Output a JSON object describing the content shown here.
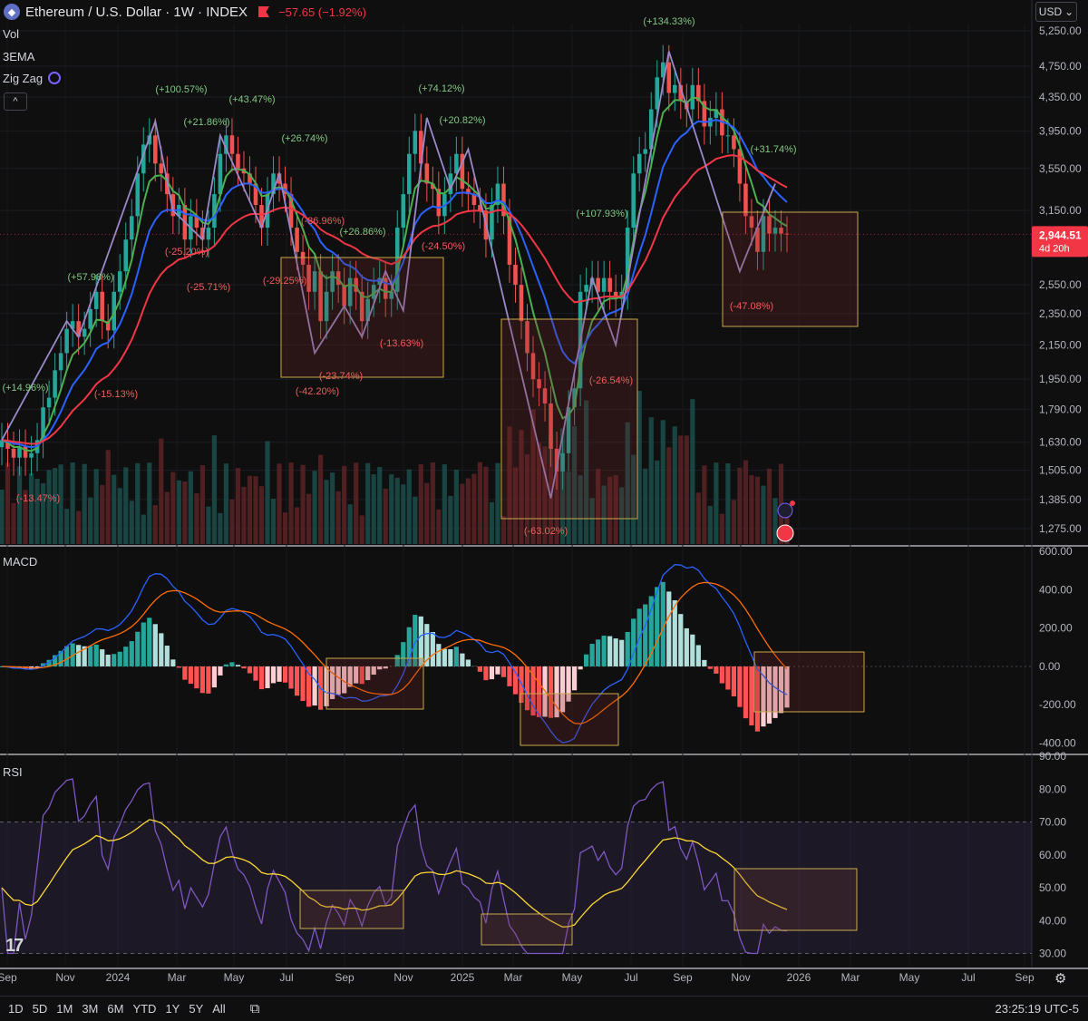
{
  "header": {
    "symbol_title": "Ethereum / U.S. Dollar · 1W · INDEX",
    "change": "−57.65 (−1.92%)",
    "currency": "USD",
    "currency_caret": "⌄"
  },
  "indicators": {
    "vol": "Vol",
    "ema": "3EMA",
    "zigzag": "Zig Zag",
    "collapse": "^"
  },
  "price_tag": {
    "value": "2,944.51",
    "countdown": "4d 20h"
  },
  "bottom": {
    "timeframes": [
      "1D",
      "5D",
      "1M",
      "3M",
      "6M",
      "YTD",
      "1Y",
      "5Y",
      "All"
    ],
    "clock": "23:25:19 UTC-5"
  },
  "chart_data": [
    {
      "type": "candlestick",
      "pane": "price",
      "y_ticks": [
        "5,250.00",
        "4,750.00",
        "4,350.00",
        "3,950.00",
        "3,550.00",
        "3,150.00",
        "2,550.00",
        "2,350.00",
        "2,150.00",
        "1,950.00",
        "1,790.00",
        "1,630.00",
        "1,505.00",
        "1,385.00",
        "1,275.00"
      ],
      "y_tick_values": [
        5250,
        4750,
        4350,
        3950,
        3550,
        3150,
        2550,
        2350,
        2150,
        1950,
        1790,
        1630,
        1505,
        1385,
        1275
      ],
      "scale": "log",
      "x_ticks": [
        "Sep",
        "Nov",
        "2024",
        "Mar",
        "May",
        "Jul",
        "Sep",
        "Nov",
        "2025",
        "Mar",
        "May",
        "Jul",
        "Sep",
        "Nov",
        "2026",
        "Mar",
        "May",
        "Jul",
        "Sep"
      ],
      "close_path": [
        1640,
        1600,
        1560,
        1610,
        1560,
        1580,
        1640,
        1800,
        1850,
        2000,
        2100,
        2250,
        2300,
        2200,
        2250,
        2380,
        2500,
        2300,
        2240,
        2500,
        2650,
        2900,
        3100,
        3500,
        3800,
        3900,
        3600,
        3500,
        3300,
        3100,
        3200,
        2900,
        3100,
        3000,
        2900,
        3000,
        3300,
        3700,
        3900,
        3700,
        3550,
        3500,
        3400,
        3200,
        3000,
        3300,
        3500,
        3400,
        3300,
        3000,
        2800,
        2700,
        2500,
        2650,
        2300,
        2500,
        2650,
        2550,
        2400,
        2600,
        2500,
        2300,
        2450,
        2550,
        2600,
        2450,
        2500,
        3000,
        3300,
        3700,
        3950,
        3600,
        3400,
        3350,
        3100,
        3300,
        3500,
        3700,
        3350,
        3300,
        3200,
        3150,
        2900,
        3200,
        3400,
        3100,
        2700,
        2550,
        2300,
        2100,
        1950,
        1900,
        1820,
        1600,
        1500,
        1580,
        1800,
        1900,
        2500,
        2550,
        2600,
        2500,
        2600,
        2500,
        2450,
        2500,
        3000,
        3500,
        3700,
        3750,
        4200,
        4600,
        4800,
        4400,
        4500,
        4300,
        4200,
        4500,
        4300,
        4000,
        4100,
        4200,
        3900,
        3900,
        3750,
        3400,
        3100,
        3000,
        2800,
        3100,
        2950,
        3000,
        2950,
        2944.51
      ],
      "annotations": [
        "(+100.57%)",
        "(+43.47%)",
        "(+21.86%)",
        "(+26.74%)",
        "(+57.98%)",
        "(-25.20%)",
        "(-25.71%)",
        "(+14.96%)",
        "(-15.13%)",
        "(-13.47%)",
        "(+74.12%)",
        "(+20.82%)",
        "(-36.96%)",
        "(+26.86%)",
        "(-24.50%)",
        "(-29.25%)",
        "(-13.63%)",
        "(-23.74%)",
        "(-42.20%)",
        "(+134.33%)",
        "(+107.93%)",
        "(-26.54%)",
        "(-63.02%)",
        "(+31.74%)",
        "(-47.08%)"
      ],
      "series": [
        {
          "name": "EMA fast",
          "color": "#4caf50"
        },
        {
          "name": "EMA mid",
          "color": "#2962ff"
        },
        {
          "name": "EMA slow",
          "color": "#f23645"
        },
        {
          "name": "Zig Zag",
          "color": "#9b88c9"
        }
      ]
    },
    {
      "type": "bar",
      "pane": "macd",
      "title": "MACD",
      "y_ticks": [
        "600.00",
        "400.00",
        "200.00",
        "0.00",
        "-200.00",
        "-400.00"
      ],
      "y_tick_values": [
        600,
        400,
        200,
        0,
        -200,
        -400
      ],
      "ylim": [
        -450,
        620
      ]
    },
    {
      "type": "line",
      "pane": "rsi",
      "title": "RSI",
      "y_ticks": [
        "90.00",
        "80.00",
        "70.00",
        "60.00",
        "50.00",
        "40.00",
        "30.00"
      ],
      "y_tick_values": [
        90,
        80,
        70,
        60,
        50,
        40,
        30
      ],
      "ylim": [
        26,
        90
      ],
      "bands": [
        30,
        70
      ],
      "series": [
        {
          "name": "RSI",
          "color": "#7e57c2"
        },
        {
          "name": "RSI MA",
          "color": "#fdd835"
        }
      ]
    }
  ]
}
